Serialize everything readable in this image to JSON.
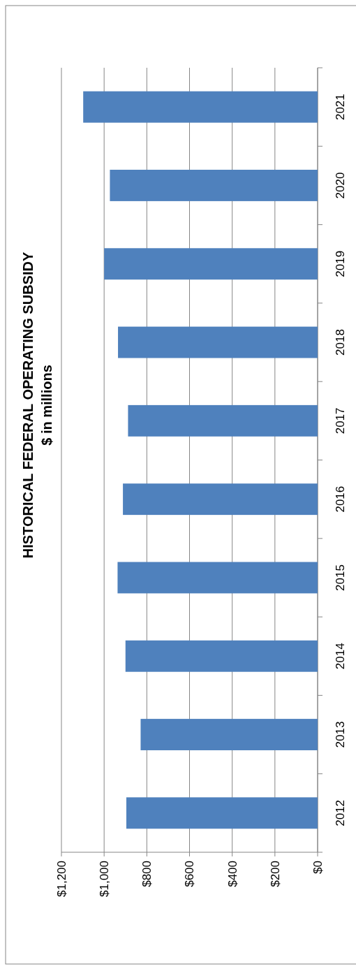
{
  "chart_data": {
    "type": "bar",
    "orientation": "horizontal",
    "title": "HISTORICAL FEDERAL OPERATING SUBSIDY",
    "subtitle": "$ in millions",
    "categories": [
      "2021",
      "2020",
      "2019",
      "2018",
      "2017",
      "2016",
      "2015",
      "2014",
      "2013",
      "2012"
    ],
    "values": [
      1098,
      973,
      1000,
      935,
      888,
      912,
      937,
      900,
      829,
      896
    ],
    "color": "#4f81bd",
    "xlim": [
      1200,
      0
    ],
    "xticks": [
      {
        "value": 1200,
        "label": "$1,200"
      },
      {
        "value": 1000,
        "label": "$1,000"
      },
      {
        "value": 800,
        "label": "$800"
      },
      {
        "value": 600,
        "label": "$600"
      },
      {
        "value": 400,
        "label": "$400"
      },
      {
        "value": 200,
        "label": "$200"
      },
      {
        "value": 0,
        "label": "$0"
      }
    ],
    "grid": "x"
  }
}
